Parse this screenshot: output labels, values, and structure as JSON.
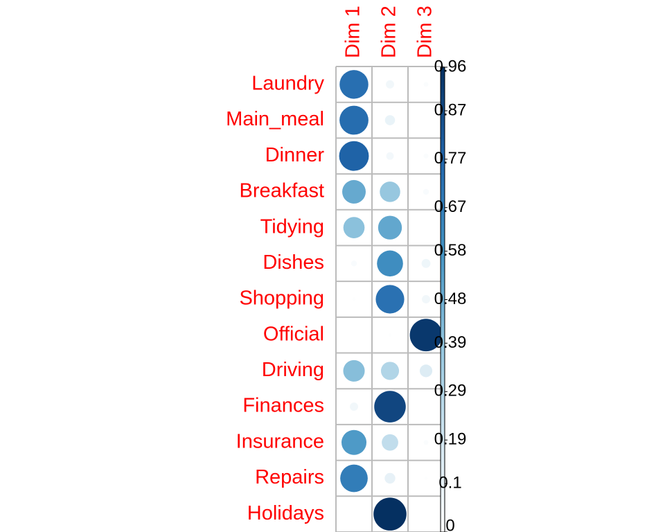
{
  "chart_data": {
    "type": "corrplot",
    "rows": [
      "Laundry",
      "Main_meal",
      "Dinner",
      "Breakfast",
      "Tidying",
      "Dishes",
      "Shopping",
      "Official",
      "Driving",
      "Finances",
      "Insurance",
      "Repairs",
      "Holidays"
    ],
    "columns": [
      "Dim 1",
      "Dim 2",
      "Dim 3"
    ],
    "values": [
      [
        0.73,
        0.06,
        0.02
      ],
      [
        0.74,
        0.09,
        0.0
      ],
      [
        0.78,
        0.05,
        0.02
      ],
      [
        0.49,
        0.37,
        0.03
      ],
      [
        0.4,
        0.5,
        0.0
      ],
      [
        0.03,
        0.6,
        0.07
      ],
      [
        0.01,
        0.72,
        0.06
      ],
      [
        0.0,
        0.01,
        0.93
      ],
      [
        0.41,
        0.29,
        0.14
      ],
      [
        0.06,
        0.88,
        0.0
      ],
      [
        0.55,
        0.24,
        0.02
      ],
      [
        0.67,
        0.1,
        0.01
      ],
      [
        0.0,
        0.96,
        0.0
      ]
    ],
    "palette": [
      "#ffffff",
      "#d1e5f0",
      "#92c5de",
      "#4393c3",
      "#2166ac",
      "#053061"
    ],
    "clim": [
      0,
      0.96
    ],
    "cticks": [
      0,
      0.1,
      0.19,
      0.29,
      0.39,
      0.48,
      0.58,
      0.67,
      0.77,
      0.87,
      0.96
    ]
  }
}
